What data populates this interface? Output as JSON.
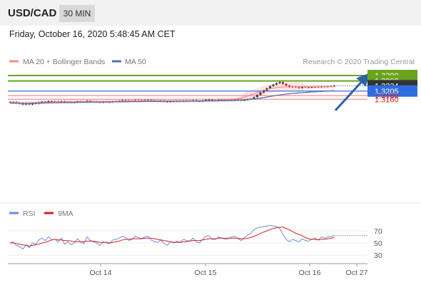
{
  "header": {
    "symbol": "USD/CAD",
    "timeframe": "30 MIN"
  },
  "datetime": "Friday, October 16, 2020 5:48:45 AM CET",
  "legend": {
    "ma20": "MA 20 + Bollinger Bands",
    "ma50": "MA 50",
    "credit": "Research © 2020 Trading Central",
    "rsi": "RSI",
    "ma9": "9MA"
  },
  "colors": {
    "green": "#6aa31e",
    "blue_line": "#5b86e5",
    "red_line": "#f09090",
    "label_blue": "#2e6de0",
    "label_dark": "#333333",
    "ma50": "#4f73b6",
    "ma20": "#f08080",
    "band": "#fde0e0",
    "arrow": "#2b63a8",
    "candle_up": "#444444",
    "candle_down": "#b33030",
    "rsi_line": "#6a8fd8",
    "ma9_line": "#d62020"
  },
  "chart_data": {
    "type": "candlestick",
    "instrument": "USD/CAD",
    "price_range": [
      1.3127,
      1.33
    ],
    "levels": [
      {
        "label": "1.3290",
        "value": 1.329,
        "kind": "resistance"
      },
      {
        "label": "1.3260",
        "value": 1.326,
        "kind": "resistance"
      },
      {
        "label": "1.3234",
        "value": 1.3234,
        "kind": "last"
      },
      {
        "label": "1.3205",
        "value": 1.3205,
        "kind": "pivot"
      },
      {
        "label": "1.3180",
        "value": 1.318,
        "kind": "support"
      },
      {
        "label": "1.3160",
        "value": 1.316,
        "kind": "support"
      }
    ],
    "x_ticks": [
      "Oct 14",
      "Oct 15",
      "Oct 16",
      "Oct 27"
    ],
    "close": [
      1.3143,
      1.3145,
      1.3139,
      1.3136,
      1.3131,
      1.3135,
      1.3131,
      1.3138,
      1.3136,
      1.3143,
      1.3147,
      1.3145,
      1.315,
      1.3147,
      1.3148,
      1.3145,
      1.3149,
      1.3142,
      1.3145,
      1.3142,
      1.3143,
      1.3149,
      1.3146,
      1.3144,
      1.3151,
      1.3148,
      1.3147,
      1.3145,
      1.3142,
      1.3146,
      1.3145,
      1.3144,
      1.3148,
      1.3149,
      1.3151,
      1.3154,
      1.3153,
      1.315,
      1.3151,
      1.3155,
      1.3154,
      1.3153,
      1.3155,
      1.3156,
      1.3152,
      1.315,
      1.3149,
      1.3152,
      1.3148,
      1.3145,
      1.3149,
      1.3148,
      1.315,
      1.3149,
      1.3152,
      1.3151,
      1.315,
      1.3154,
      1.315,
      1.3149,
      1.3153,
      1.3157,
      1.3158,
      1.3154,
      1.3154,
      1.3157,
      1.3156,
      1.3154,
      1.3155,
      1.3157,
      1.3158,
      1.3155,
      1.3153,
      1.3156,
      1.316,
      1.3162,
      1.3171,
      1.3184,
      1.3197,
      1.3208,
      1.322,
      1.3232,
      1.324,
      1.3248,
      1.3254,
      1.3244,
      1.3235,
      1.3227,
      1.323,
      1.3226,
      1.3222,
      1.3229,
      1.3225,
      1.3224,
      1.3227,
      1.3229,
      1.3226,
      1.323,
      1.3229,
      1.3231,
      1.3232,
      1.3234
    ],
    "ma20": [
      1.3145,
      1.3144,
      1.3142,
      1.314,
      1.3139,
      1.3139,
      1.3139,
      1.314,
      1.3141,
      1.3142,
      1.3142,
      1.3143,
      1.3143,
      1.3144,
      1.3145,
      1.3145,
      1.3146,
      1.3146,
      1.3146,
      1.3146,
      1.3146,
      1.3146,
      1.3147,
      1.3147,
      1.3147,
      1.3147,
      1.3147,
      1.3147,
      1.3147,
      1.3147,
      1.3147,
      1.3147,
      1.3147,
      1.3148,
      1.3149,
      1.315,
      1.315,
      1.3151,
      1.3151,
      1.3152,
      1.3153,
      1.3153,
      1.3153,
      1.3153,
      1.3153,
      1.3153,
      1.3152,
      1.3152,
      1.3151,
      1.3151,
      1.3151,
      1.3151,
      1.3151,
      1.3151,
      1.3151,
      1.3151,
      1.3151,
      1.3151,
      1.3151,
      1.3151,
      1.3151,
      1.3152,
      1.3152,
      1.3153,
      1.3153,
      1.3154,
      1.3155,
      1.3155,
      1.3156,
      1.3158,
      1.316,
      1.3163,
      1.3167,
      1.3172,
      1.3178,
      1.3184,
      1.319,
      1.3196,
      1.3203,
      1.3209,
      1.3214,
      1.3218,
      1.3221,
      1.3224,
      1.3226,
      1.3227,
      1.3228,
      1.3229,
      1.3229,
      1.3229,
      1.3229,
      1.3229,
      1.3229,
      1.3229,
      1.3229,
      1.3229,
      1.3229,
      1.3229,
      1.3229,
      1.3229,
      1.323,
      1.323
    ],
    "ma50": [
      1.3138,
      1.3138,
      1.3138,
      1.3138,
      1.3138,
      1.3138,
      1.3138,
      1.3138,
      1.3139,
      1.3139,
      1.3139,
      1.314,
      1.314,
      1.314,
      1.3141,
      1.3141,
      1.3141,
      1.3142,
      1.3142,
      1.3142,
      1.3143,
      1.3143,
      1.3143,
      1.3144,
      1.3144,
      1.3144,
      1.3144,
      1.3145,
      1.3145,
      1.3145,
      1.3145,
      1.3146,
      1.3146,
      1.3146,
      1.3146,
      1.3146,
      1.3146,
      1.3147,
      1.3147,
      1.3147,
      1.3147,
      1.3147,
      1.3148,
      1.3148,
      1.3148,
      1.3148,
      1.3148,
      1.3148,
      1.3148,
      1.3149,
      1.3149,
      1.3149,
      1.3149,
      1.3149,
      1.3149,
      1.3149,
      1.315,
      1.315,
      1.315,
      1.315,
      1.315,
      1.3151,
      1.3151,
      1.3151,
      1.3151,
      1.3152,
      1.3152,
      1.3152,
      1.3153,
      1.3153,
      1.3153,
      1.3154,
      1.3155,
      1.3156,
      1.3157,
      1.3159,
      1.3161,
      1.3163,
      1.3166,
      1.3169,
      1.3172,
      1.3175,
      1.3178,
      1.3181,
      1.3184,
      1.3186,
      1.3188,
      1.319,
      1.3192,
      1.3193,
      1.3195,
      1.3196,
      1.3197,
      1.3199,
      1.32,
      1.3201,
      1.3202,
      1.3203,
      1.3204,
      1.3205,
      1.3206,
      1.3207
    ],
    "rsi_panel": {
      "ticks": [
        70,
        50,
        30
      ],
      "range": [
        20,
        80
      ],
      "rsi": [
        50,
        52,
        46,
        44,
        40,
        47,
        42,
        50,
        48,
        55,
        58,
        54,
        60,
        55,
        56,
        52,
        58,
        48,
        52,
        47,
        50,
        57,
        52,
        49,
        60,
        54,
        52,
        50,
        46,
        52,
        50,
        49,
        55,
        56,
        58,
        61,
        59,
        54,
        56,
        61,
        59,
        57,
        60,
        61,
        55,
        52,
        51,
        55,
        49,
        46,
        52,
        50,
        53,
        51,
        56,
        54,
        53,
        58,
        52,
        50,
        56,
        61,
        62,
        56,
        56,
        60,
        58,
        56,
        57,
        60,
        61,
        57,
        54,
        59,
        63,
        66,
        72,
        75,
        76,
        77,
        78,
        79,
        78,
        77,
        74,
        64,
        56,
        52,
        56,
        54,
        52,
        57,
        54,
        53,
        56,
        58,
        55,
        60,
        58,
        60,
        61,
        62
      ],
      "ma9": [
        50,
        50,
        49,
        48,
        47,
        46,
        45,
        46,
        47,
        48,
        50,
        51,
        53,
        55,
        56,
        55,
        55,
        54,
        54,
        53,
        52,
        52,
        52,
        52,
        53,
        53,
        53,
        52,
        51,
        51,
        51,
        50,
        51,
        52,
        53,
        55,
        56,
        56,
        57,
        57,
        57,
        57,
        58,
        58,
        58,
        57,
        56,
        55,
        54,
        53,
        52,
        51,
        51,
        51,
        52,
        52,
        53,
        54,
        54,
        54,
        55,
        56,
        57,
        57,
        57,
        58,
        58,
        58,
        58,
        58,
        58,
        58,
        57,
        57,
        58,
        59,
        61,
        63,
        66,
        68,
        70,
        72,
        74,
        75,
        76,
        76,
        74,
        72,
        69,
        66,
        64,
        62,
        59,
        57,
        56,
        56,
        55,
        56,
        56,
        57,
        58,
        59
      ]
    }
  }
}
